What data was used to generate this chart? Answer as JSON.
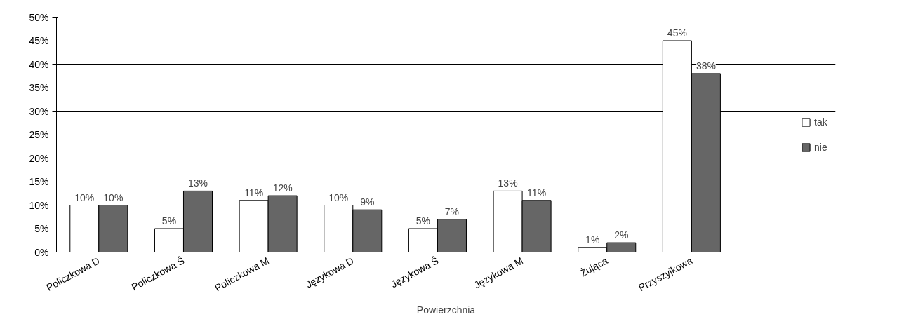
{
  "chart_data": {
    "type": "bar",
    "xlabel": "Powierzchnia",
    "categories": [
      "Policzkowa D",
      "Policzkowa Ś",
      "Policzkowa M",
      "Językowa D",
      "Językowa Ś",
      "Językowa M",
      "Żująca",
      "Przyszyjkowa"
    ],
    "series": [
      {
        "name": "tak",
        "color": "#ffffff",
        "values": [
          10,
          5,
          11,
          10,
          5,
          13,
          1,
          45
        ],
        "value_labels": [
          "10%",
          "5%",
          "11%",
          "10%",
          "5%",
          "13%",
          "1%",
          "45%"
        ]
      },
      {
        "name": "nie",
        "color": "#666666",
        "values": [
          10,
          13,
          12,
          9,
          7,
          11,
          2,
          38
        ],
        "value_labels": [
          "10%",
          "13%",
          "12%",
          "9%",
          "7%",
          "11%",
          "2%",
          "38%"
        ]
      }
    ],
    "ylim": [
      0,
      50
    ],
    "yticks": [
      {
        "value": 0,
        "label": "0%"
      },
      {
        "value": 5,
        "label": "5%"
      },
      {
        "value": 10,
        "label": "10%"
      },
      {
        "value": 15,
        "label": "15%"
      },
      {
        "value": 20,
        "label": "20%"
      },
      {
        "value": 25,
        "label": "25%"
      },
      {
        "value": 30,
        "label": "30%"
      },
      {
        "value": 35,
        "label": "35%"
      },
      {
        "value": 40,
        "label": "40%"
      },
      {
        "value": 45,
        "label": "45%"
      },
      {
        "value": 50,
        "label": "50%"
      }
    ],
    "grid": "y",
    "legend": "right"
  }
}
